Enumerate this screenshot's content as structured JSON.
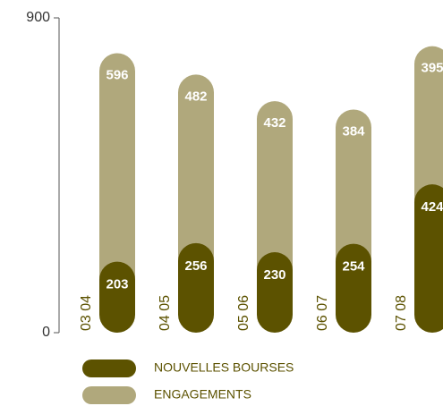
{
  "chart_data": {
    "type": "bar",
    "stacked": true,
    "categories": [
      "03 04",
      "04 05",
      "05 06",
      "06 07",
      "07 08"
    ],
    "series": [
      {
        "name": "NOUVELLES BOURSES",
        "color": "#5c5200",
        "values": [
          203,
          256,
          230,
          254,
          424
        ]
      },
      {
        "name": "ENGAGEMENTS",
        "color": "#b0a87c",
        "values": [
          596,
          482,
          432,
          384,
          395
        ]
      }
    ],
    "ylim": [
      0,
      900
    ],
    "yticks": [
      0,
      900
    ]
  }
}
